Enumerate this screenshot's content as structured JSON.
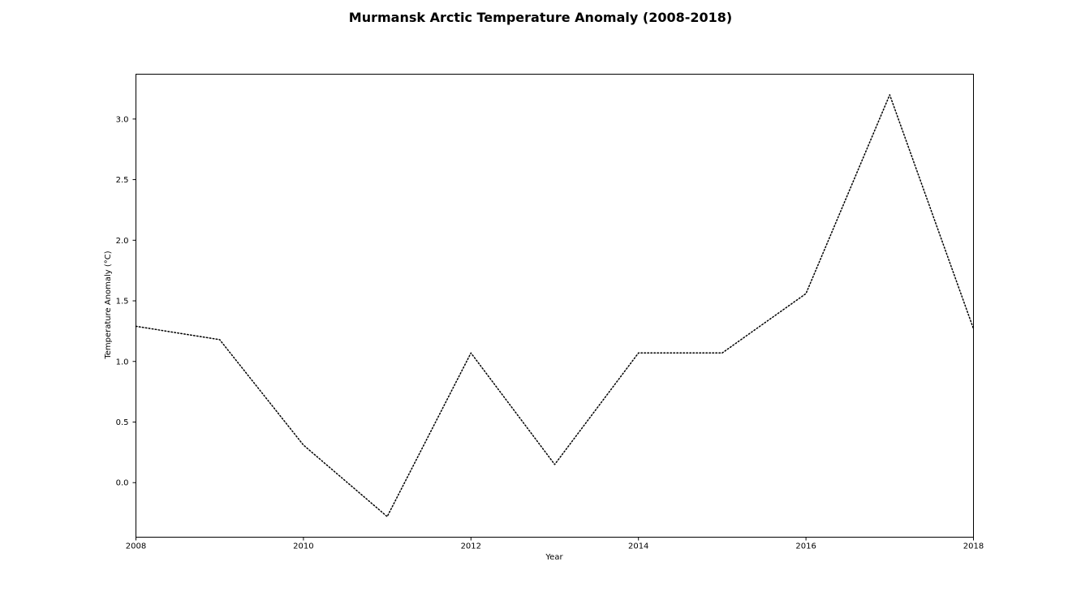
{
  "chart_data": {
    "type": "line",
    "title": "Murmansk Arctic Temperature Anomaly (2008-2018)",
    "xlabel": "Year",
    "ylabel": "Temperature Anomaly (°C)",
    "xlim": [
      2008,
      2018
    ],
    "ylim": [
      -0.45,
      3.37
    ],
    "x_ticks": [
      2008,
      2010,
      2012,
      2014,
      2016,
      2018
    ],
    "y_ticks": [
      0.0,
      0.5,
      1.0,
      1.5,
      2.0,
      2.5,
      3.0
    ],
    "y_tick_labels": [
      "0.0",
      "0.5",
      "1.0",
      "1.5",
      "2.0",
      "2.5",
      "3.0"
    ],
    "grid": false,
    "line_style": "dotted",
    "line_color": "#000000",
    "series": [
      {
        "x": [
          2008,
          2009,
          2010,
          2011,
          2012,
          2013,
          2014,
          2015,
          2016,
          2017,
          2018
        ],
        "values": [
          1.29,
          1.18,
          0.31,
          -0.28,
          1.07,
          0.15,
          1.07,
          1.07,
          1.56,
          3.2,
          1.27
        ]
      }
    ]
  }
}
